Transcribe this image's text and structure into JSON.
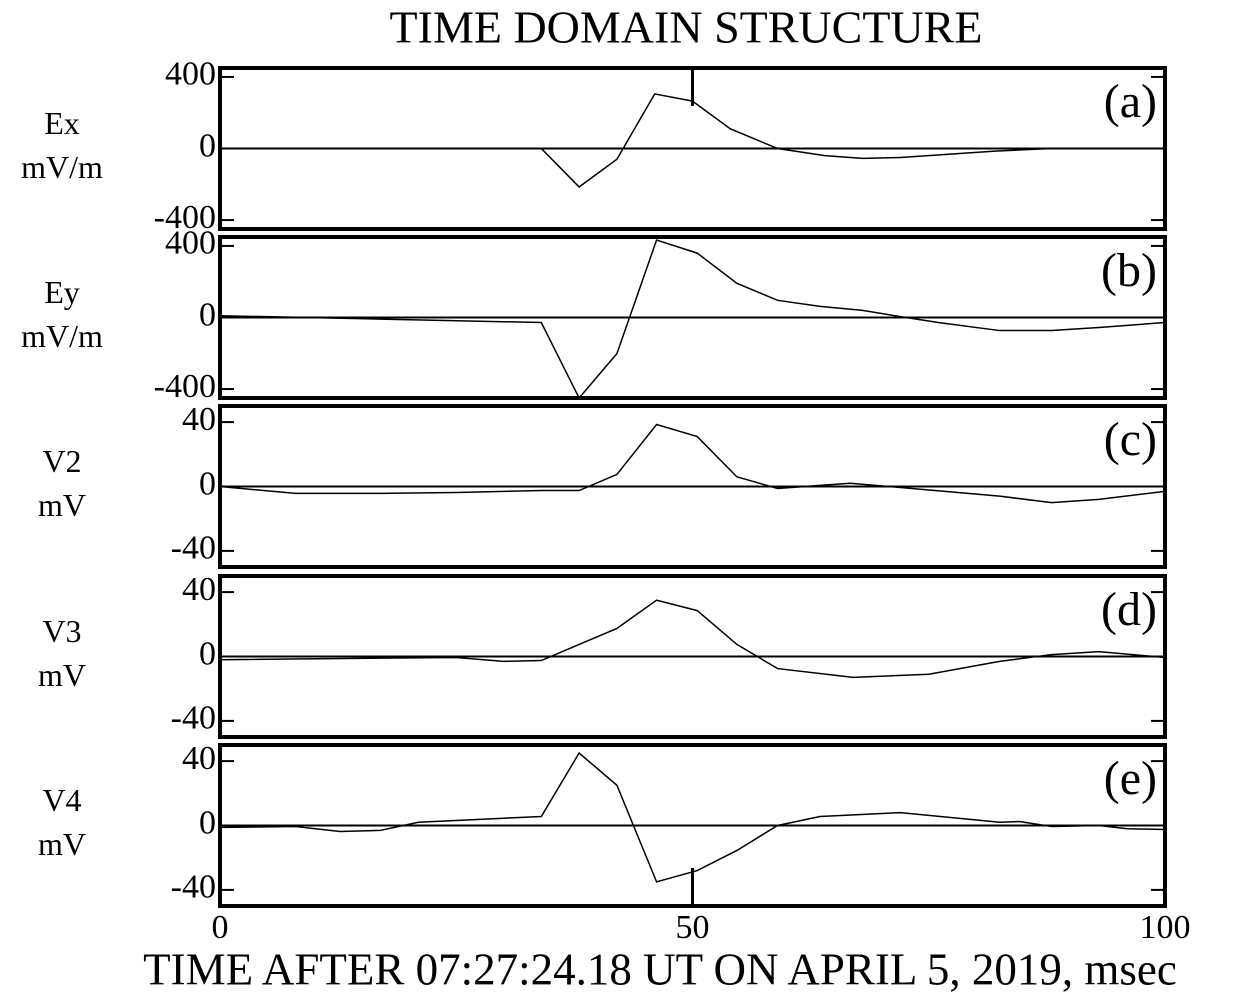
{
  "chart_data": [
    {
      "type": "line",
      "title": "TIME DOMAIN STRUCTURE",
      "ylabel": [
        "Ex",
        "mV/m"
      ],
      "annotation": "(a)",
      "xlim": [
        0,
        100
      ],
      "ylim": [
        -450,
        450
      ],
      "yticks": [
        -400,
        0,
        400
      ],
      "color": "#000000",
      "x": [
        0,
        34,
        38,
        42,
        46,
        50,
        54,
        59,
        64,
        68,
        72,
        82,
        88,
        100
      ],
      "values": [
        0,
        0,
        -215,
        -60,
        305,
        265,
        110,
        0,
        -40,
        -55,
        -50,
        -15,
        0,
        0
      ]
    },
    {
      "type": "line",
      "ylabel": [
        "Ey",
        "mV/m"
      ],
      "annotation": "(b)",
      "xlim": [
        0,
        100
      ],
      "ylim": [
        -450,
        450
      ],
      "yticks": [
        -400,
        0,
        400
      ],
      "color": "#000000",
      "x": [
        0,
        34,
        38,
        42,
        46.2,
        50.5,
        54.7,
        59,
        63.5,
        68,
        72,
        76,
        82.5,
        88,
        93,
        100
      ],
      "values": [
        10,
        -28,
        -450,
        -202,
        433,
        360,
        191,
        96,
        62,
        40,
        5,
        -28,
        -73,
        -73,
        -56,
        -28
      ]
    },
    {
      "type": "line",
      "ylabel": [
        "V2",
        "mV"
      ],
      "annotation": "(c)",
      "xlim": [
        0,
        100
      ],
      "ylim": [
        -50,
        50
      ],
      "yticks": [
        -40,
        0,
        40
      ],
      "color": "#000000",
      "x": [
        0,
        8,
        17,
        25,
        34,
        38,
        42,
        46.2,
        50.5,
        54.7,
        59,
        66.7,
        72,
        82.5,
        88,
        93,
        100
      ],
      "values": [
        0,
        -4.3,
        -4.3,
        -3.7,
        -2.5,
        -2.5,
        7.5,
        38.5,
        31,
        6,
        -1.2,
        2,
        -0.6,
        -6,
        -10,
        -8,
        -3
      ]
    },
    {
      "type": "line",
      "ylabel": [
        "V3",
        "mV"
      ],
      "annotation": "(d)",
      "xlim": [
        0,
        100
      ],
      "ylim": [
        -50,
        50
      ],
      "yticks": [
        -40,
        0,
        40
      ],
      "color": "#000000",
      "x": [
        0,
        25,
        30,
        34,
        38,
        42,
        46.2,
        50.5,
        54.7,
        59,
        67,
        75,
        82.5,
        88,
        93,
        100
      ],
      "values": [
        -2,
        -0.6,
        -3,
        -2.5,
        7.5,
        17.4,
        35,
        28.5,
        7.5,
        -7.5,
        -13,
        -11,
        -3,
        1.2,
        3,
        -0.6
      ]
    },
    {
      "type": "line",
      "ylabel": [
        "V4",
        "mV"
      ],
      "annotation": "(e)",
      "xlabel": "TIME AFTER 07:27:24.18 UT ON APRIL 5, 2019, msec",
      "xlim": [
        0,
        100
      ],
      "xticks": [
        0,
        50,
        100
      ],
      "ylim": [
        -50,
        50
      ],
      "yticks": [
        -40,
        0,
        40
      ],
      "color": "#000000",
      "x": [
        0,
        8,
        12.7,
        17,
        21,
        34,
        38,
        42,
        46.2,
        50.5,
        54.7,
        59,
        63.5,
        72,
        82.5,
        84.6,
        88,
        93,
        96,
        100
      ],
      "values": [
        -1.2,
        -0.6,
        -3.7,
        -3,
        2,
        5.6,
        45,
        25,
        -35,
        -28,
        -15.5,
        0,
        5.6,
        8,
        2,
        2.5,
        -0.6,
        0,
        -2,
        -2.5
      ]
    }
  ]
}
